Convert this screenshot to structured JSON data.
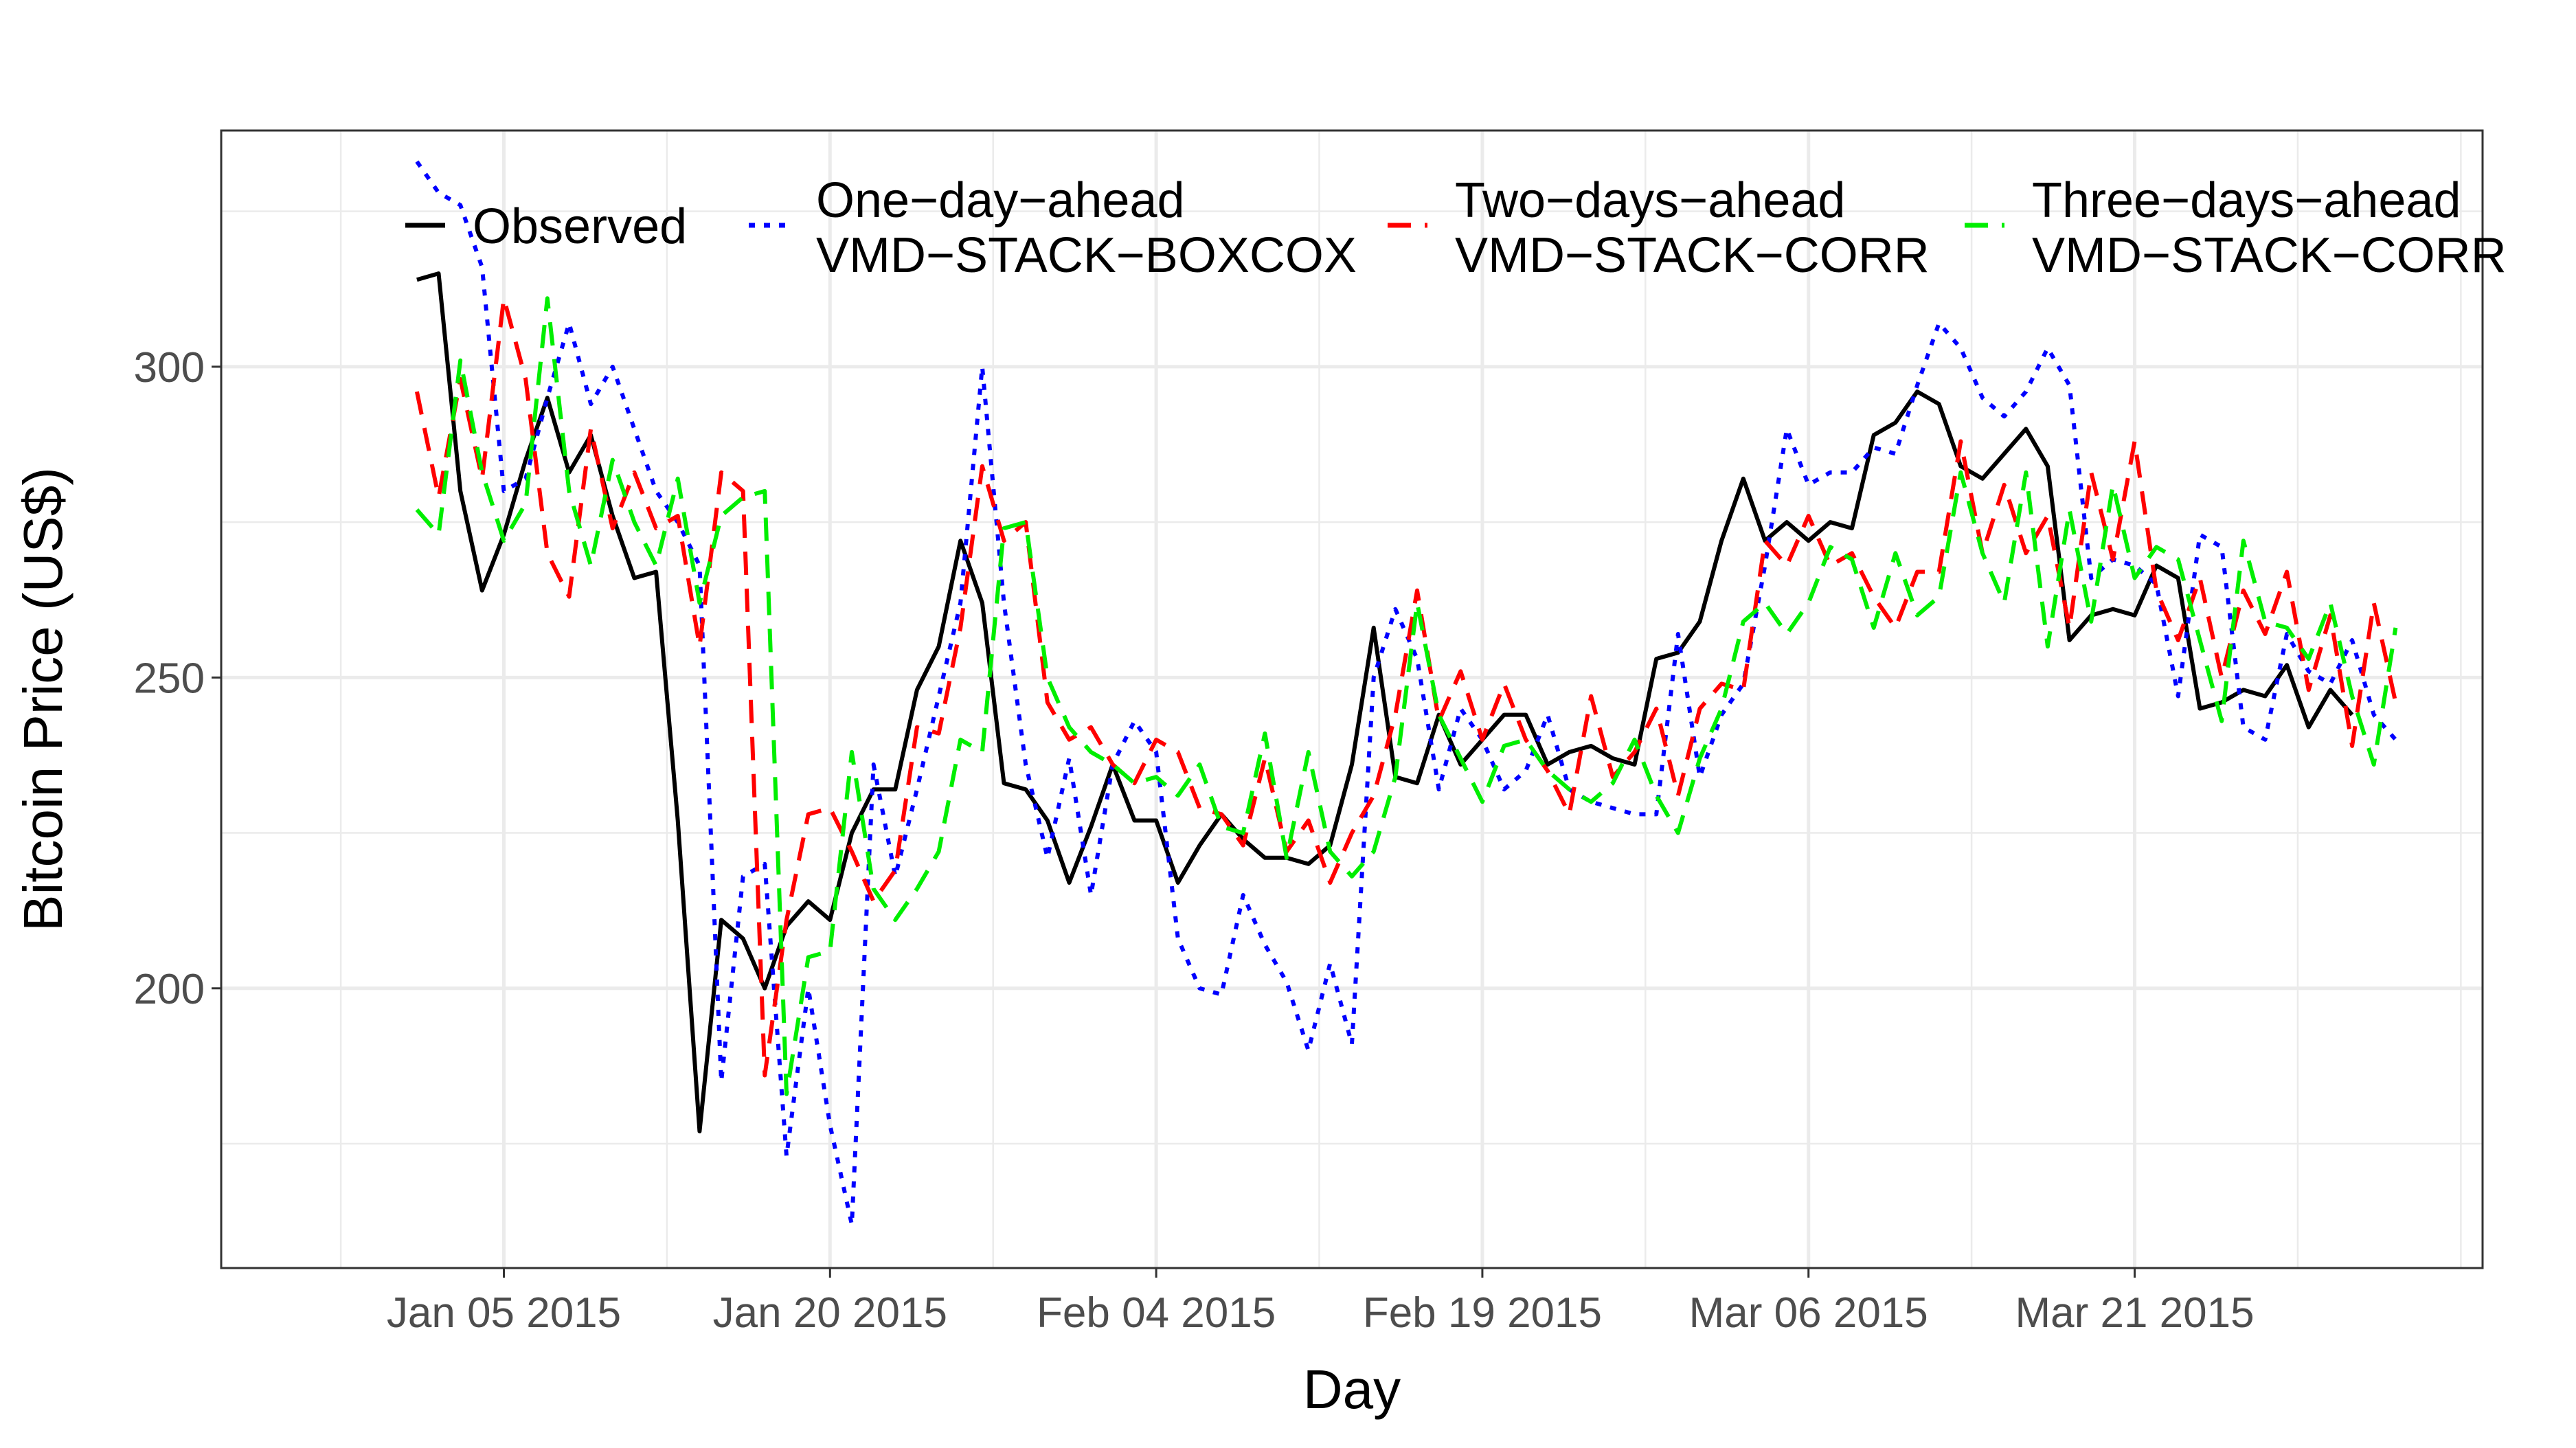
{
  "chart_data": {
    "type": "line",
    "xlabel": "Day",
    "ylabel": "Bitcoin Price (US$)",
    "x_type": "date",
    "xlim": [
      "2014-12-23",
      "2015-04-06"
    ],
    "ylim": [
      155,
      338
    ],
    "x_ticks": [
      {
        "date": "2015-01-05",
        "label": "Jan 05 2015"
      },
      {
        "date": "2015-01-20",
        "label": "Jan 20 2015"
      },
      {
        "date": "2015-02-04",
        "label": "Feb 04 2015"
      },
      {
        "date": "2015-02-19",
        "label": "Feb 19 2015"
      },
      {
        "date": "2015-03-06",
        "label": "Mar 06 2015"
      },
      {
        "date": "2015-03-21",
        "label": "Mar 21 2015"
      }
    ],
    "y_ticks": [
      200,
      250,
      300
    ],
    "grid": true,
    "legend_position": "top",
    "x_start": "2015-01-01",
    "series": [
      {
        "name": "Observed",
        "name_line2": "",
        "color": "#000000",
        "dash": "solid",
        "values": [
          314,
          315,
          280,
          264,
          273,
          285,
          295,
          283,
          289,
          276,
          266,
          267,
          227,
          177,
          211,
          208,
          200,
          210,
          214,
          211,
          225,
          232,
          232,
          248,
          255,
          272,
          262,
          233,
          232,
          227,
          217,
          226,
          236,
          227,
          227,
          217,
          223,
          228,
          224,
          221,
          221,
          220,
          223,
          236,
          258,
          234,
          233,
          244,
          236,
          240,
          244,
          244,
          236,
          238,
          239,
          237,
          236,
          253,
          254,
          259,
          272,
          282,
          272,
          275,
          272,
          275,
          274,
          289,
          291,
          296,
          294,
          284,
          282,
          286,
          290,
          284,
          256,
          260,
          261,
          260,
          268,
          266,
          245,
          246,
          248,
          247,
          252,
          242,
          248,
          244
        ]
      },
      {
        "name": "One−day−ahead",
        "name_line2": "VMD−STACK−BOXCOX",
        "color": "#0000ff",
        "dash": "dotted",
        "values": [
          333,
          328,
          326,
          316,
          280,
          282,
          295,
          307,
          294,
          300,
          290,
          280,
          275,
          268,
          185,
          218,
          220,
          173,
          200,
          178,
          162,
          236,
          218,
          232,
          247,
          262,
          300,
          262,
          236,
          221,
          237,
          215,
          236,
          243,
          238,
          208,
          200,
          199,
          215,
          207,
          201,
          190,
          204,
          191,
          250,
          261,
          253,
          232,
          245,
          240,
          232,
          235,
          244,
          232,
          230,
          229,
          228,
          228,
          257,
          234,
          244,
          249,
          268,
          290,
          281,
          283,
          283,
          287,
          286,
          297,
          307,
          303,
          295,
          292,
          296,
          303,
          297,
          266,
          269,
          268,
          265,
          247,
          273,
          271,
          242,
          240,
          257,
          251,
          249,
          256,
          244,
          240
        ]
      },
      {
        "name": "Two−days−ahead",
        "name_line2": "VMD−STACK−CORR",
        "color": "#ff0000",
        "dash": "longdash",
        "values": [
          296,
          279,
          298,
          282,
          311,
          298,
          270,
          263,
          290,
          274,
          283,
          274,
          276,
          255,
          283,
          280,
          186,
          211,
          228,
          229,
          222,
          214,
          219,
          242,
          241,
          258,
          284,
          272,
          275,
          246,
          240,
          242,
          236,
          233,
          240,
          238,
          229,
          228,
          223,
          237,
          222,
          227,
          217,
          225,
          231,
          244,
          264,
          243,
          251,
          240,
          249,
          240,
          235,
          228,
          247,
          234,
          238,
          245,
          231,
          245,
          249,
          248,
          272,
          268,
          276,
          268,
          270,
          263,
          258,
          267,
          267,
          288,
          270,
          281,
          270,
          276,
          258,
          283,
          269,
          288,
          264,
          256,
          266,
          250,
          264,
          257,
          267,
          248,
          260,
          239,
          262,
          246
        ]
      },
      {
        "name": "Three−days−ahead",
        "name_line2": "VMD−STACK−CORR",
        "color": "#00ee00",
        "dash": "longdash",
        "values": [
          277,
          273,
          301,
          283,
          272,
          278,
          311,
          280,
          268,
          285,
          275,
          268,
          282,
          262,
          276,
          279,
          280,
          183,
          205,
          206,
          238,
          216,
          211,
          216,
          222,
          240,
          238,
          274,
          275,
          250,
          242,
          238,
          236,
          233,
          234,
          231,
          236,
          226,
          225,
          241,
          221,
          238,
          222,
          218,
          222,
          234,
          262,
          244,
          237,
          230,
          239,
          240,
          235,
          232,
          230,
          233,
          240,
          231,
          225,
          237,
          245,
          259,
          262,
          257,
          262,
          271,
          269,
          258,
          270,
          260,
          263,
          283,
          270,
          262,
          283,
          255,
          277,
          259,
          281,
          266,
          271,
          269,
          256,
          243,
          272,
          259,
          258,
          253,
          262,
          247,
          236,
          258
        ]
      }
    ]
  }
}
